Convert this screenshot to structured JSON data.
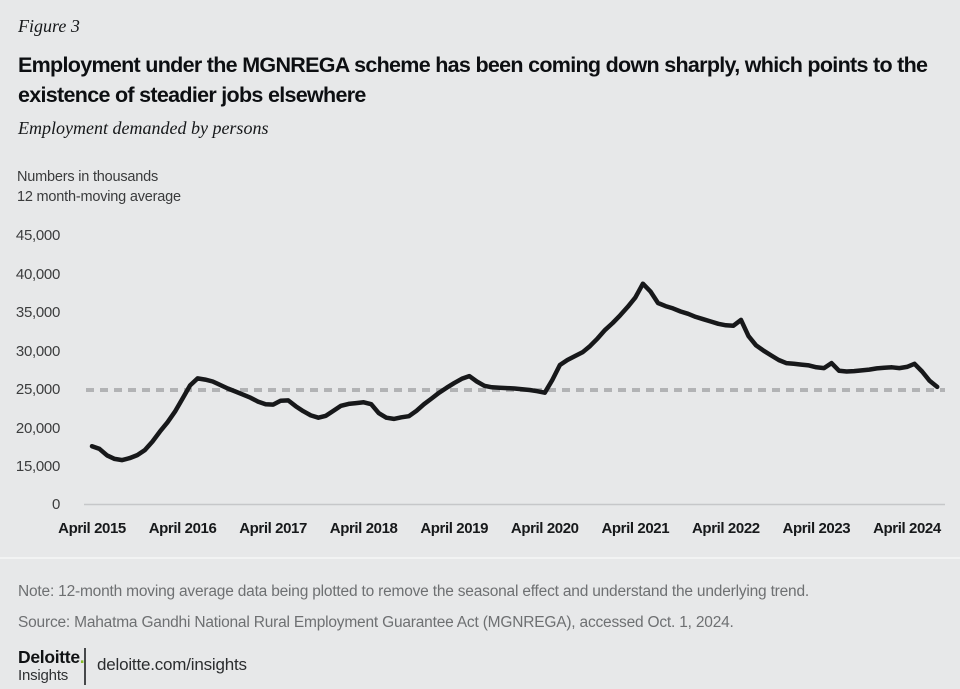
{
  "figure_label": "Figure 3",
  "title": "Employment under the MGNREGA scheme has been coming down sharply, which points to the existence of steadier jobs elsewhere",
  "subtitle": "Employment demanded by persons",
  "unit_line1": "Numbers in thousands",
  "unit_line2": "12 month-moving average",
  "note": "Note: 12-month moving average data being plotted to remove the seasonal effect and understand the underlying trend.",
  "source": "Source: Mahatma Gandhi National Rural Employment Guarantee Act (MGNREGA), accessed Oct. 1, 2024.",
  "footer": {
    "brand": "Deloitte",
    "brand_dot": ".",
    "brand_sub": "Insights",
    "url": "deloitte.com/insights"
  },
  "colors": {
    "background": "#e7e8e9",
    "series_line": "#17181a",
    "reference_dashed": "#b2b3b5",
    "axis_line": "#c6c7c9",
    "accent_green": "#86bc25",
    "muted_text": "#6e7072"
  },
  "chart_data": {
    "type": "line",
    "title": "Employment demanded by persons",
    "ylabel": "Numbers in thousands, 12 month-moving average",
    "xlabel": "",
    "grid": false,
    "legend": "none",
    "broken_y_axis": true,
    "ylim": [
      0,
      47000
    ],
    "reference_line_y": 25000,
    "y_ticks": [
      {
        "label": "45,000",
        "value": 45000
      },
      {
        "label": "40,000",
        "value": 40000
      },
      {
        "label": "35,000",
        "value": 35000
      },
      {
        "label": "30,000",
        "value": 30000
      },
      {
        "label": "25,000",
        "value": 25000
      },
      {
        "label": "20,000",
        "value": 20000
      },
      {
        "label": "15,000",
        "value": 15000
      },
      {
        "label": "0",
        "value": 0
      }
    ],
    "x_ticks": [
      "April 2015",
      "April 2016",
      "April 2017",
      "April 2018",
      "April 2019",
      "April 2020",
      "April 2021",
      "April 2022",
      "April 2023",
      "April 2024"
    ],
    "frequency": "monthly",
    "start_month": "2015-04",
    "end_month": "2024-08",
    "series": [
      {
        "name": "Employment demanded by persons (12-month moving average, thousands)",
        "values": [
          17700,
          17350,
          16500,
          16050,
          15900,
          16150,
          16550,
          17200,
          18300,
          19600,
          20800,
          22200,
          23900,
          25600,
          26500,
          26350,
          26100,
          25650,
          25200,
          24800,
          24400,
          24000,
          23500,
          23150,
          23100,
          23600,
          23650,
          22900,
          22250,
          21700,
          21400,
          21650,
          22300,
          22950,
          23200,
          23300,
          23400,
          23150,
          22000,
          21400,
          21250,
          21450,
          21600,
          22300,
          23150,
          23900,
          24650,
          25300,
          25900,
          26450,
          26800,
          26100,
          25550,
          25350,
          25300,
          25250,
          25200,
          25100,
          25000,
          24850,
          24650,
          26300,
          28250,
          28900,
          29400,
          29900,
          30700,
          31700,
          32800,
          33700,
          34700,
          35800,
          37000,
          38800,
          37800,
          36300,
          35900,
          35600,
          35200,
          34900,
          34500,
          34200,
          33900,
          33600,
          33400,
          33350,
          34100,
          32000,
          30800,
          30100,
          29500,
          28900,
          28500,
          28400,
          28300,
          28200,
          27950,
          27850,
          28500,
          27500,
          27400,
          27450,
          27550,
          27650,
          27800,
          27900,
          27950,
          27850,
          28000,
          28400,
          27400,
          26200,
          25400
        ]
      }
    ]
  }
}
